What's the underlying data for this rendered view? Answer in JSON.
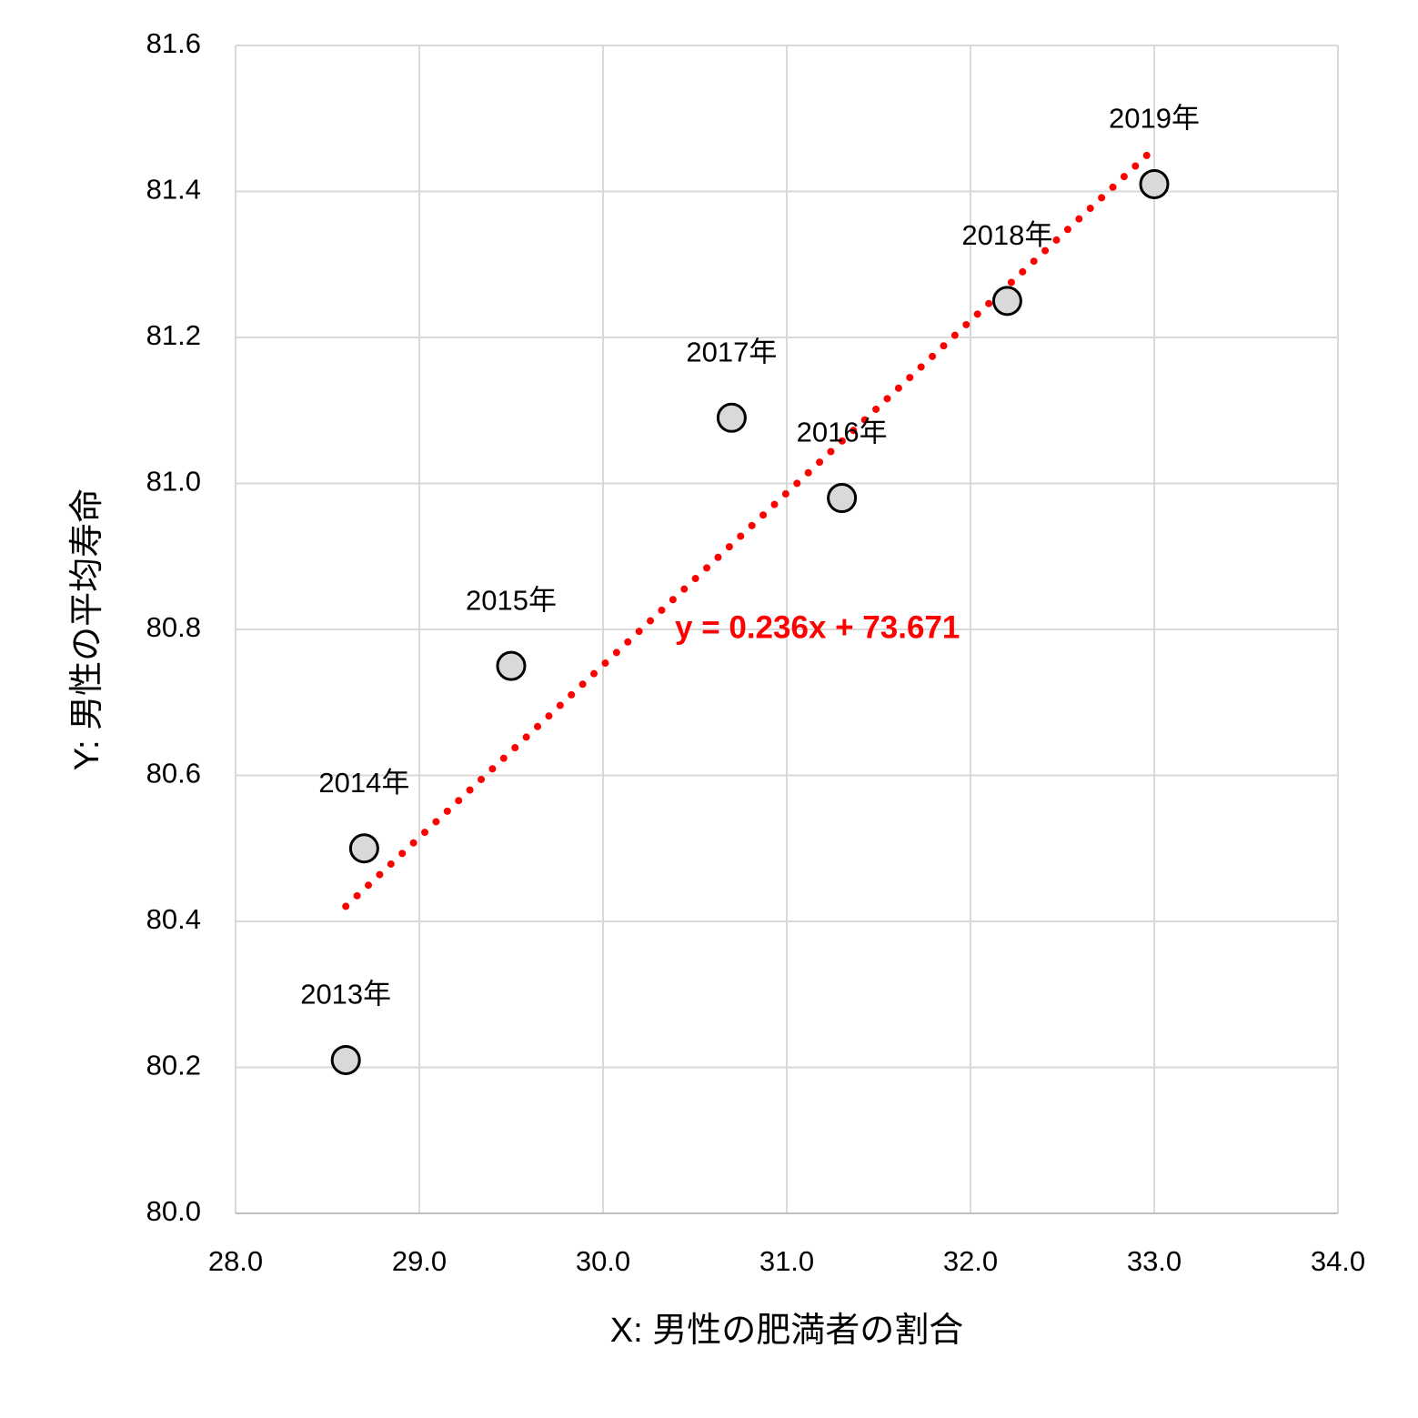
{
  "chart_data": {
    "type": "scatter",
    "x_label": "X: 男性の肥満者の割合",
    "y_label": "Y: 男性の平均寿命",
    "x": [
      28.6,
      28.7,
      29.5,
      31.3,
      30.7,
      32.2,
      33.0
    ],
    "series": [
      {
        "color": "#d9d9d9",
        "values": [
          80.21,
          80.5,
          80.75,
          80.98,
          81.09,
          81.25,
          81.41
        ]
      }
    ],
    "point_labels": [
      "2013年",
      "2014年",
      "2015年",
      "2016年",
      "2017年",
      "2018年",
      "2019年"
    ],
    "trendline": {
      "label": "y = 0.236x + 73.671",
      "slope": 0.236,
      "intercept": 73.671,
      "color": "#ff0000"
    },
    "xlim": [
      28,
      34
    ],
    "ylim": [
      80,
      81.6
    ],
    "xticks": [
      {
        "value": 28,
        "label": "28.0"
      },
      {
        "value": 29,
        "label": "29.0"
      },
      {
        "value": 30,
        "label": "30.0"
      },
      {
        "value": 31,
        "label": "31.0"
      },
      {
        "value": 32,
        "label": "32.0"
      },
      {
        "value": 33,
        "label": "33.0"
      },
      {
        "value": 34,
        "label": "34.0"
      }
    ],
    "yticks": [
      {
        "value": 80,
        "label": "80.0"
      },
      80.2,
      80.4,
      80.6,
      80.8,
      {
        "value": 81,
        "label": "81.0"
      },
      81.2,
      81.4,
      81.6
    ],
    "grid": true
  }
}
